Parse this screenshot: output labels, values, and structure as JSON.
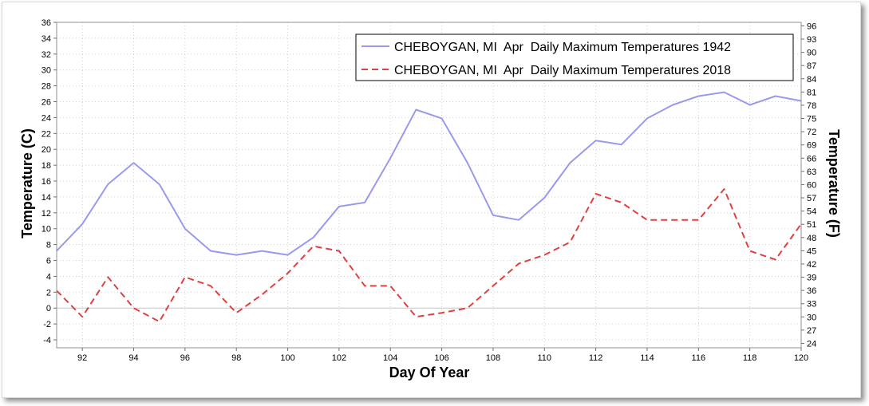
{
  "chart_data": {
    "type": "line",
    "xlabel": "Day Of Year",
    "ylabel_left": "Temperature (C)",
    "ylabel_right": "Temperature (F)",
    "xlim": [
      91,
      120
    ],
    "ylim": [
      -5,
      36
    ],
    "ylim_right_f": [
      23,
      96.8
    ],
    "x_ticks": [
      92,
      94,
      96,
      98,
      100,
      102,
      104,
      106,
      108,
      110,
      112,
      114,
      116,
      118,
      120
    ],
    "y_ticks_left": [
      -4,
      -2,
      0,
      2,
      4,
      6,
      8,
      10,
      12,
      14,
      16,
      18,
      20,
      22,
      24,
      26,
      28,
      30,
      32,
      34,
      36
    ],
    "y_ticks_right": [
      24,
      27,
      30,
      33,
      36,
      39,
      42,
      45,
      48,
      51,
      54,
      57,
      60,
      63,
      66,
      69,
      72,
      75,
      78,
      81,
      84,
      87,
      90,
      93,
      96
    ],
    "grid": true,
    "legend_position": "top-right",
    "series": [
      {
        "name": "CHEBOYGAN, MI  Apr  Daily Maximum Temperatures 1942",
        "color": "#9999ee",
        "dash": "solid",
        "x": [
          91,
          92,
          93,
          94,
          95,
          96,
          97,
          98,
          99,
          100,
          101,
          102,
          103,
          104,
          105,
          106,
          107,
          108,
          109,
          110,
          111,
          112,
          113,
          114,
          115,
          116,
          117,
          118,
          119,
          120
        ],
        "values": [
          7.2,
          10.6,
          15.6,
          18.3,
          15.6,
          10.0,
          7.2,
          6.7,
          7.2,
          6.7,
          8.9,
          12.8,
          13.3,
          18.9,
          25.0,
          23.9,
          18.3,
          11.7,
          11.1,
          13.9,
          18.3,
          21.1,
          20.6,
          23.9,
          25.6,
          26.7,
          27.2,
          25.6,
          26.7,
          26.1
        ]
      },
      {
        "name": "CHEBOYGAN, MI  Apr  Daily Maximum Temperatures 2018",
        "color": "#e04040",
        "dash": "dashed",
        "x": [
          91,
          92,
          93,
          94,
          95,
          96,
          97,
          98,
          99,
          100,
          101,
          102,
          103,
          104,
          105,
          106,
          107,
          108,
          109,
          110,
          111,
          112,
          113,
          114,
          115,
          116,
          117,
          118,
          119,
          120
        ],
        "values": [
          2.2,
          -1.1,
          3.9,
          0.0,
          -1.7,
          3.9,
          2.8,
          -0.6,
          1.7,
          4.4,
          7.8,
          7.2,
          2.8,
          2.8,
          -1.1,
          -0.6,
          0.0,
          2.8,
          5.6,
          6.7,
          8.3,
          14.4,
          13.3,
          11.1,
          11.1,
          11.1,
          15.0,
          7.2,
          6.1,
          10.6
        ]
      }
    ]
  }
}
